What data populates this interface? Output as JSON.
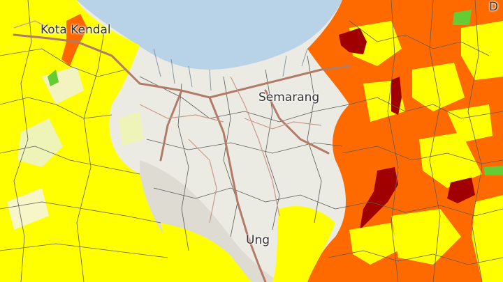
{
  "map": {
    "labels": {
      "kendal": "Kota Kendal",
      "semarang": "Semarang",
      "ungaran": "Ung",
      "demak": "D"
    },
    "legend_colors": {
      "sea": "#b7d3e8",
      "land": "#eeeee4",
      "yellow": "#ffff00",
      "orange": "#ff6600",
      "dark_red": "#a00000",
      "green": "#66cc33",
      "road": "#b27a68",
      "boundary": "#555555"
    }
  }
}
